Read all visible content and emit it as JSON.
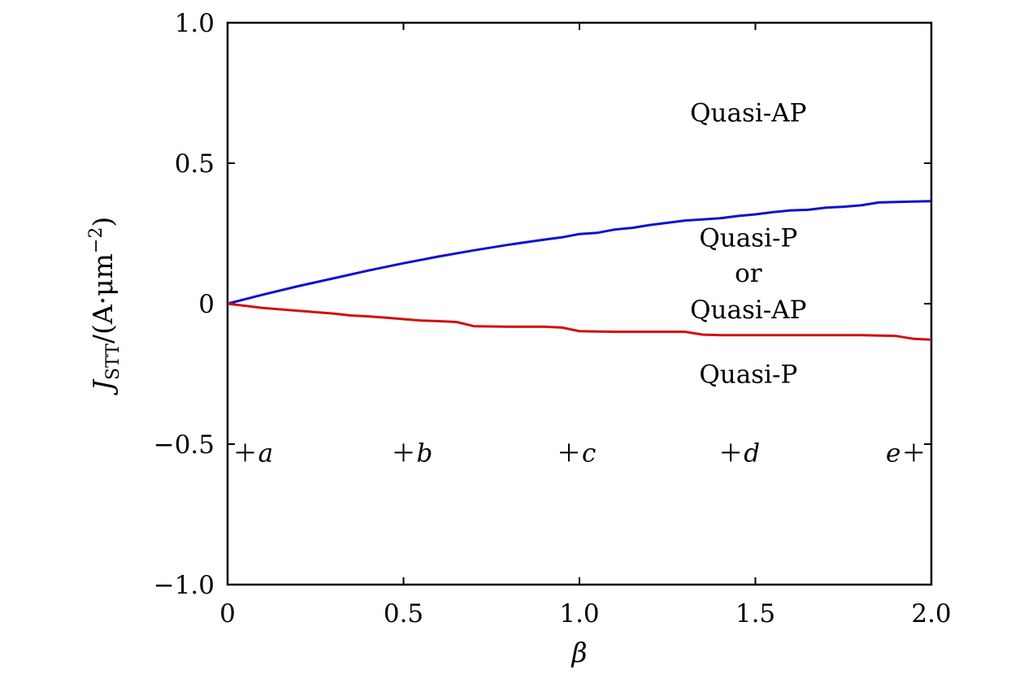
{
  "chart_data": {
    "type": "line",
    "title": "",
    "xlabel": "β",
    "ylabel": {
      "main": "J",
      "sub": "STT",
      "rest": "/(A·μm",
      "sup": "−2",
      "close": ")"
    },
    "xlim": [
      0,
      2.0
    ],
    "ylim": [
      -1.0,
      1.0
    ],
    "xticks": [
      0,
      0.5,
      1.0,
      1.5,
      2.0
    ],
    "xtick_labels": [
      "0",
      "0.5",
      "1.0",
      "1.5",
      "2.0"
    ],
    "yticks": [
      -1.0,
      -0.5,
      0,
      0.5,
      1.0
    ],
    "ytick_labels": [
      "−1.0",
      "−0.5",
      "0",
      "0.5",
      "1.0"
    ],
    "grid": false,
    "series": [
      {
        "color": "#1010d0",
        "x": [
          0,
          0.1,
          0.2,
          0.3,
          0.4,
          0.5,
          0.6,
          0.7,
          0.8,
          0.9,
          0.95,
          1.0,
          1.05,
          1.1,
          1.15,
          1.2,
          1.25,
          1.3,
          1.35,
          1.4,
          1.45,
          1.5,
          1.55,
          1.6,
          1.65,
          1.7,
          1.75,
          1.8,
          1.85,
          1.9,
          2.0
        ],
        "y": [
          0,
          0.032,
          0.062,
          0.09,
          0.118,
          0.144,
          0.168,
          0.19,
          0.21,
          0.228,
          0.236,
          0.248,
          0.252,
          0.264,
          0.27,
          0.28,
          0.288,
          0.296,
          0.3,
          0.304,
          0.312,
          0.318,
          0.326,
          0.332,
          0.334,
          0.342,
          0.345,
          0.35,
          0.36,
          0.362,
          0.365
        ]
      },
      {
        "color": "#d01010",
        "x": [
          0,
          0.1,
          0.2,
          0.3,
          0.35,
          0.4,
          0.45,
          0.5,
          0.55,
          0.6,
          0.65,
          0.7,
          0.8,
          0.9,
          0.95,
          1.0,
          1.1,
          1.2,
          1.3,
          1.35,
          1.4,
          1.5,
          1.6,
          1.7,
          1.8,
          1.9,
          1.95,
          2.0
        ],
        "y": [
          0,
          -0.015,
          -0.025,
          -0.035,
          -0.042,
          -0.045,
          -0.05,
          -0.055,
          -0.06,
          -0.062,
          -0.065,
          -0.08,
          -0.082,
          -0.082,
          -0.085,
          -0.098,
          -0.1,
          -0.1,
          -0.1,
          -0.11,
          -0.112,
          -0.112,
          -0.112,
          -0.112,
          -0.112,
          -0.115,
          -0.125,
          -0.128
        ]
      }
    ],
    "region_labels": [
      {
        "text": "Quasi-AP",
        "x": 1.48,
        "y": 0.68
      },
      {
        "text": "Quasi-P",
        "x": 1.48,
        "y": 0.235
      },
      {
        "text": "or",
        "x": 1.48,
        "y": 0.11
      },
      {
        "text": "Quasi-AP",
        "x": 1.48,
        "y": -0.02
      },
      {
        "text": "Quasi-P",
        "x": 1.48,
        "y": -0.25
      }
    ],
    "markers": [
      {
        "label": "a",
        "x": 0.05,
        "y": -0.53,
        "label_side": "right"
      },
      {
        "label": "b",
        "x": 0.5,
        "y": -0.53,
        "label_side": "right"
      },
      {
        "label": "c",
        "x": 0.97,
        "y": -0.53,
        "label_side": "right"
      },
      {
        "label": "d",
        "x": 1.43,
        "y": -0.53,
        "label_side": "right"
      },
      {
        "label": "e",
        "x": 1.95,
        "y": -0.53,
        "label_side": "left"
      }
    ]
  }
}
